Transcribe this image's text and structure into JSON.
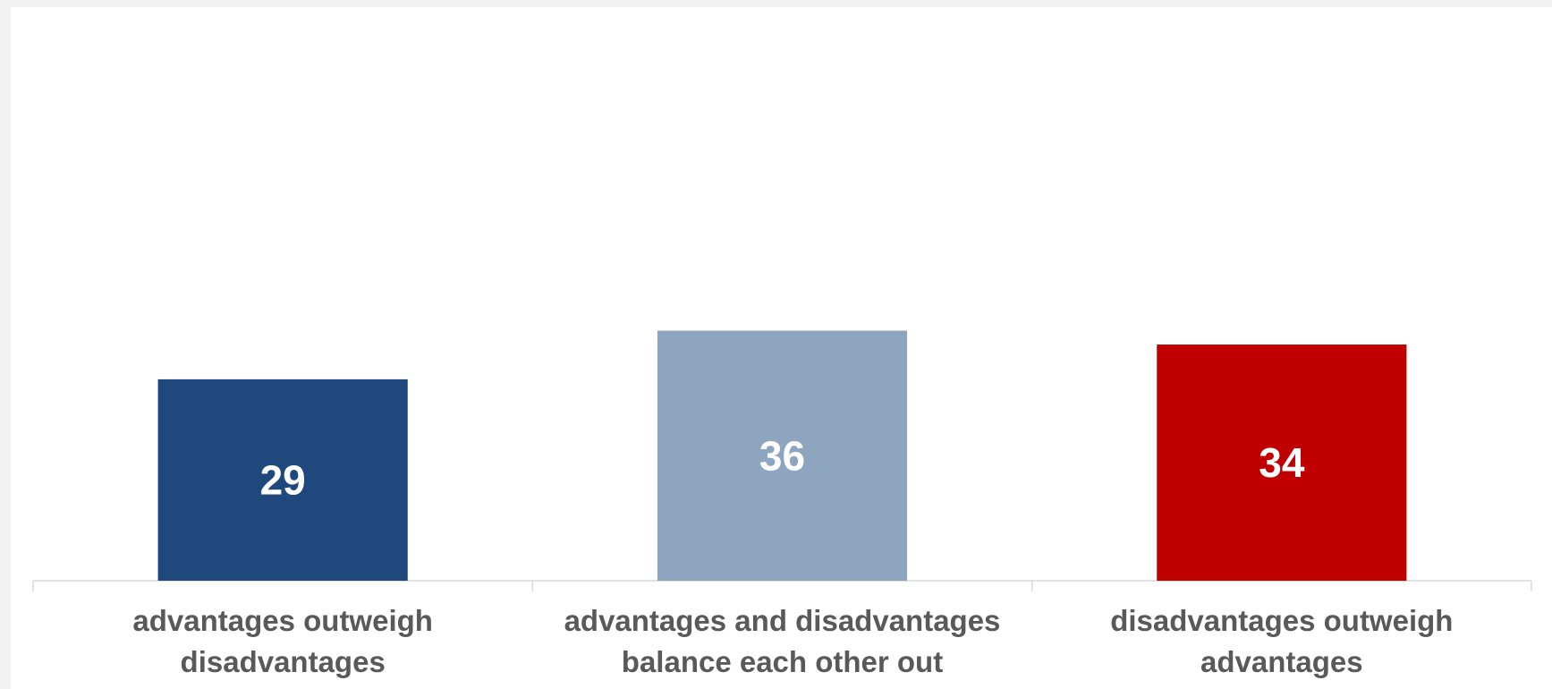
{
  "chart_data": {
    "type": "bar",
    "title": "",
    "xlabel": "",
    "ylabel": "",
    "ylim": [
      0,
      80
    ],
    "grid": false,
    "legend": "none",
    "categories": [
      [
        "advantages outweigh",
        "disadvantages"
      ],
      [
        "advantages and disadvantages",
        "balance each other out"
      ],
      [
        "disadvantages outweigh",
        "advantages"
      ]
    ],
    "values": [
      29,
      36,
      34
    ],
    "value_labels": [
      "29",
      "36",
      "34"
    ],
    "colors": [
      "#1f497d",
      "#8ea5c0",
      "#c00000"
    ],
    "axis_color": "#d9d9d9"
  }
}
